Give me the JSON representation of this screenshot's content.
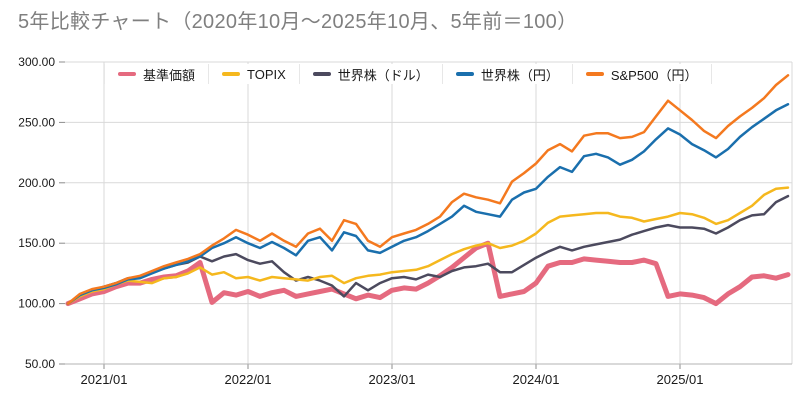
{
  "chart_title": "5年比較チャート（2020年10月〜2025年10月、5年前＝100）",
  "colors": {
    "title_text": "#7f7f7f",
    "axis_text": "#1a1a1a",
    "gridline": "#d9d9d9",
    "axis_line": "#b3b3b3",
    "tick_mark": "#8c8c8c",
    "background": "#ffffff"
  },
  "chart_data": {
    "type": "line",
    "title": "5年比較チャート（2020年10月〜2025年10月、5年前＝100）",
    "x_unit": "month",
    "x_start": "2020/10",
    "x_end": "2025/10",
    "points_per_series": 61,
    "baseline_value": 100,
    "ylim": [
      50,
      300
    ],
    "y_ticks": [
      300,
      250,
      200,
      150,
      100,
      50
    ],
    "y_tick_labels": [
      "300.00",
      "250.00",
      "200.00",
      "150.00",
      "100.00",
      "50.00"
    ],
    "x_tick_labels": [
      "2021/01",
      "2022/01",
      "2023/01",
      "2024/01",
      "2025/01"
    ],
    "x_tick_month_indices": [
      3,
      15,
      27,
      39,
      51
    ],
    "grid": true,
    "legend_position": "top",
    "draw_order": [
      0,
      2,
      1,
      3,
      4
    ],
    "series": [
      {
        "name": "基準価額",
        "color": "#e56a7f",
        "line_width": 5,
        "values": [
          100,
          104,
          108,
          110,
          114,
          117,
          117,
          120,
          122,
          123,
          127,
          134,
          101,
          109,
          107,
          110,
          106,
          109,
          111,
          106,
          108,
          110,
          112,
          108,
          104,
          107,
          105,
          111,
          113,
          112,
          117,
          123,
          130,
          138,
          146,
          150,
          106,
          108,
          110,
          117,
          131,
          134,
          134,
          137,
          136,
          135,
          134,
          134,
          136,
          133,
          106,
          108,
          107,
          105,
          100,
          108,
          114,
          122,
          123,
          121,
          124
        ]
      },
      {
        "name": "TOPIX",
        "color": "#f5b81e",
        "line_width": 2.5,
        "values": [
          100,
          106,
          110,
          112,
          116,
          119,
          118,
          117,
          121,
          122,
          125,
          130,
          124,
          126,
          121,
          122,
          119,
          122,
          121,
          120,
          119,
          122,
          123,
          117,
          121,
          123,
          124,
          126,
          127,
          128,
          131,
          136,
          141,
          145,
          148,
          150,
          146,
          148,
          152,
          158,
          167,
          172,
          173,
          174,
          175,
          175,
          172,
          171,
          168,
          170,
          172,
          175,
          174,
          171,
          166,
          169,
          175,
          181,
          190,
          195,
          196
        ]
      },
      {
        "name": "世界株（ドル）",
        "color": "#4c4a5e",
        "line_width": 2.5,
        "values": [
          100,
          107,
          111,
          114,
          117,
          121,
          122,
          126,
          129,
          132,
          134,
          139,
          135,
          139,
          141,
          136,
          133,
          135,
          126,
          119,
          122,
          119,
          115,
          106,
          117,
          111,
          117,
          121,
          122,
          120,
          124,
          122,
          127,
          130,
          131,
          133,
          126,
          126,
          132,
          138,
          143,
          147,
          144,
          147,
          149,
          151,
          153,
          157,
          160,
          163,
          165,
          163,
          163,
          162,
          158,
          163,
          169,
          173,
          174,
          184,
          189
        ]
      },
      {
        "name": "世界株（円）",
        "color": "#1a6fad",
        "line_width": 2.5,
        "values": [
          100,
          107,
          111,
          113,
          116,
          120,
          121,
          125,
          129,
          132,
          135,
          139,
          146,
          150,
          155,
          150,
          146,
          151,
          146,
          140,
          152,
          155,
          144,
          159,
          156,
          144,
          142,
          147,
          152,
          155,
          160,
          166,
          172,
          181,
          176,
          174,
          172,
          186,
          192,
          195,
          205,
          213,
          209,
          222,
          224,
          221,
          215,
          219,
          226,
          236,
          245,
          240,
          232,
          227,
          221,
          228,
          238,
          246,
          253,
          260,
          265
        ]
      },
      {
        "name": "S&P500（円）",
        "color": "#f4791f",
        "line_width": 2.5,
        "values": [
          100,
          108,
          112,
          114,
          117,
          121,
          123,
          127,
          131,
          134,
          137,
          141,
          148,
          154,
          161,
          157,
          152,
          158,
          152,
          147,
          158,
          162,
          152,
          169,
          166,
          152,
          147,
          155,
          158,
          161,
          166,
          172,
          184,
          191,
          188,
          186,
          183,
          201,
          208,
          216,
          227,
          232,
          226,
          239,
          241,
          241,
          237,
          238,
          242,
          255,
          268,
          260,
          252,
          243,
          237,
          247,
          255,
          262,
          270,
          281,
          289
        ]
      }
    ]
  }
}
